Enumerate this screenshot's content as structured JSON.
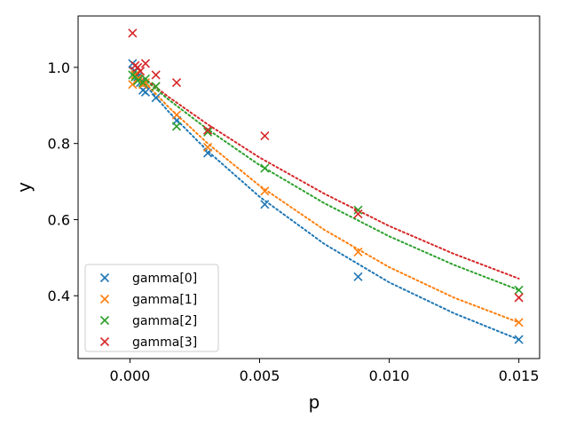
{
  "chart_data": {
    "type": "scatter",
    "xlabel": "p",
    "ylabel": "y",
    "xlim": [
      -0.002,
      0.0158
    ],
    "ylim": [
      0.235,
      1.135
    ],
    "xticks": [
      0.0,
      0.005,
      0.01,
      0.015
    ],
    "xtick_labels": [
      "0.000",
      "0.005",
      "0.010",
      "0.015"
    ],
    "yticks": [
      0.4,
      0.6,
      0.8,
      1.0
    ],
    "ytick_labels": [
      "0.4",
      "0.6",
      "0.8",
      "1.0"
    ],
    "grid": false,
    "legend_position": "lower-left",
    "marker": "x",
    "fit_style": "dotted",
    "series": [
      {
        "name": "gamma[0]",
        "color": "#1f77b4",
        "points": [
          [
            0.0001,
            1.01
          ],
          [
            0.0002,
            0.99
          ],
          [
            0.0003,
            0.975
          ],
          [
            0.0004,
            0.96
          ],
          [
            0.0005,
            0.94
          ],
          [
            0.0006,
            0.935
          ],
          [
            0.001,
            0.92
          ],
          [
            0.0018,
            0.86
          ],
          [
            0.003,
            0.775
          ],
          [
            0.0052,
            0.64
          ],
          [
            0.0088,
            0.45
          ],
          [
            0.015,
            0.285
          ]
        ],
        "fit": [
          [
            0.0,
            1.0
          ],
          [
            0.0015,
            0.883
          ],
          [
            0.003,
            0.78
          ],
          [
            0.005,
            0.66
          ],
          [
            0.0075,
            0.536
          ],
          [
            0.01,
            0.435
          ],
          [
            0.0125,
            0.354
          ],
          [
            0.015,
            0.285
          ]
        ]
      },
      {
        "name": "gamma[1]",
        "color": "#ff7f0e",
        "points": [
          [
            0.0001,
            0.955
          ],
          [
            0.0002,
            0.98
          ],
          [
            0.0003,
            0.97
          ],
          [
            0.0005,
            0.955
          ],
          [
            0.0006,
            0.96
          ],
          [
            0.001,
            0.95
          ],
          [
            0.0018,
            0.875
          ],
          [
            0.003,
            0.79
          ],
          [
            0.0052,
            0.675
          ],
          [
            0.0088,
            0.515
          ],
          [
            0.015,
            0.33
          ]
        ],
        "fit": [
          [
            0.0,
            1.0
          ],
          [
            0.0015,
            0.895
          ],
          [
            0.003,
            0.8
          ],
          [
            0.005,
            0.689
          ],
          [
            0.0075,
            0.573
          ],
          [
            0.01,
            0.475
          ],
          [
            0.0125,
            0.395
          ],
          [
            0.015,
            0.33
          ]
        ]
      },
      {
        "name": "gamma[2]",
        "color": "#2ca02c",
        "points": [
          [
            0.0001,
            0.98
          ],
          [
            0.0002,
            0.975
          ],
          [
            0.0003,
            0.965
          ],
          [
            0.0005,
            0.96
          ],
          [
            0.0006,
            0.97
          ],
          [
            0.001,
            0.95
          ],
          [
            0.0018,
            0.845
          ],
          [
            0.003,
            0.83
          ],
          [
            0.0052,
            0.735
          ],
          [
            0.0088,
            0.625
          ],
          [
            0.015,
            0.415
          ]
        ],
        "fit": [
          [
            0.0,
            1.0
          ],
          [
            0.0015,
            0.915
          ],
          [
            0.003,
            0.837
          ],
          [
            0.005,
            0.743
          ],
          [
            0.0075,
            0.643
          ],
          [
            0.01,
            0.556
          ],
          [
            0.0125,
            0.481
          ],
          [
            0.015,
            0.415
          ]
        ]
      },
      {
        "name": "gamma[3]",
        "color": "#d62728",
        "points": [
          [
            0.0001,
            1.09
          ],
          [
            0.0002,
            1.005
          ],
          [
            0.0003,
            1.0
          ],
          [
            0.0004,
            0.99
          ],
          [
            0.0006,
            1.01
          ],
          [
            0.001,
            0.98
          ],
          [
            0.0018,
            0.96
          ],
          [
            0.003,
            0.835
          ],
          [
            0.0052,
            0.82
          ],
          [
            0.0088,
            0.615
          ],
          [
            0.015,
            0.395
          ]
        ],
        "fit": [
          [
            0.0,
            1.0
          ],
          [
            0.0015,
            0.922
          ],
          [
            0.003,
            0.85
          ],
          [
            0.005,
            0.763
          ],
          [
            0.0075,
            0.668
          ],
          [
            0.01,
            0.583
          ],
          [
            0.0125,
            0.51
          ],
          [
            0.015,
            0.445
          ]
        ]
      }
    ]
  }
}
